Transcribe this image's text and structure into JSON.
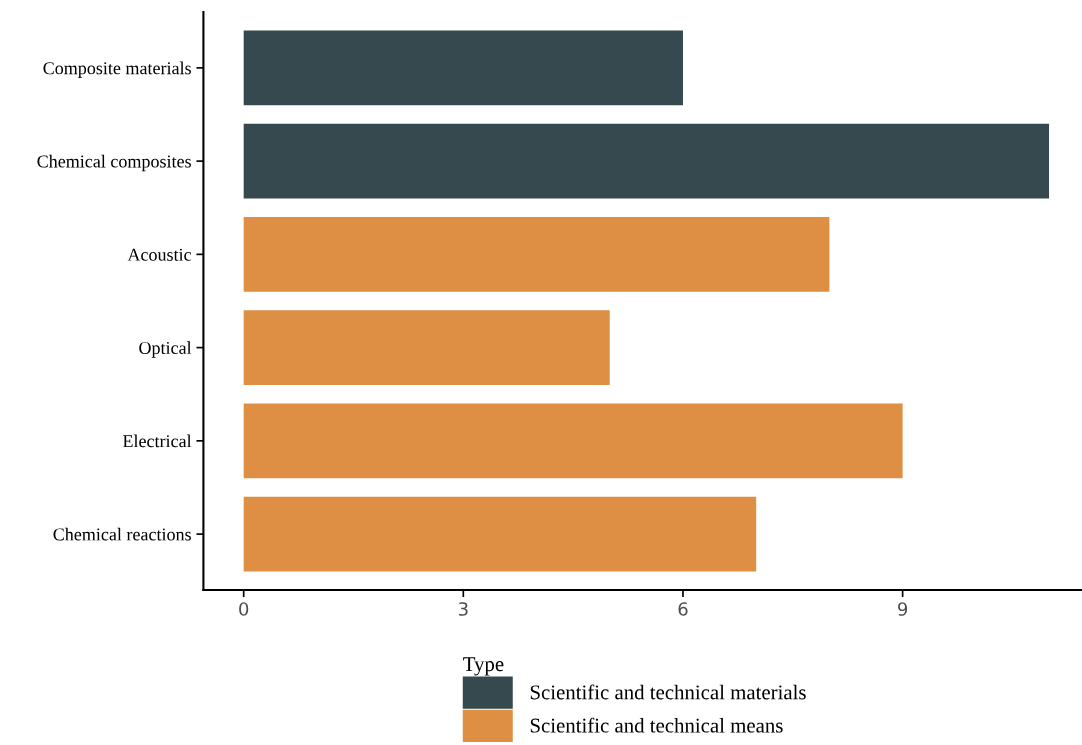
{
  "chart_data": {
    "type": "bar",
    "orientation": "horizontal",
    "categories": [
      "Composite materials",
      "Chemical composites",
      "Acoustic",
      "Optical",
      "Electrical",
      "Chemical reactions"
    ],
    "series": [
      {
        "name": "Scientific and technical materials",
        "color": "#36494f",
        "values": [
          6,
          11,
          null,
          null,
          null,
          null
        ]
      },
      {
        "name": "Scientific and technical means",
        "color": "#de8f43",
        "values": [
          null,
          null,
          8,
          5,
          9,
          7
        ]
      }
    ],
    "xlim": [
      -0.55,
      11.45
    ],
    "xticks": [
      0,
      3,
      6,
      9
    ],
    "legend_title": "Type",
    "legend": "bottom",
    "grid": false
  }
}
